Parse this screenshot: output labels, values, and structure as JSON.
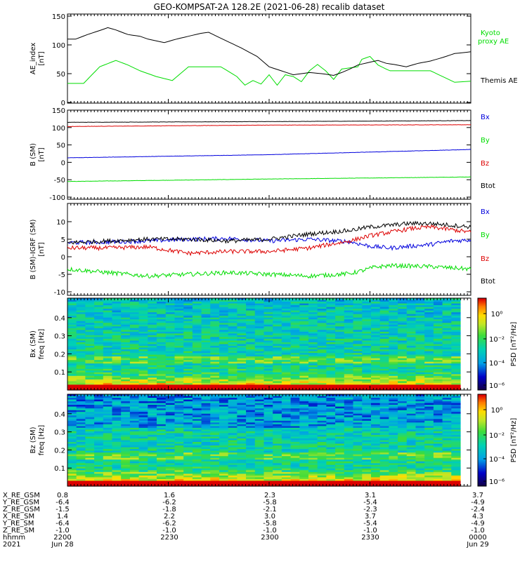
{
  "title": "GEO-KOMPSAT-2A 128.2E (2021-06-28) recalib dataset",
  "colors": {
    "black": "#000000",
    "red": "#dd0000",
    "green": "#00dd00",
    "blue": "#0000dd"
  },
  "chart_data": [
    {
      "type": "line",
      "ylabel": "AE_index\n[nT]",
      "ylim": [
        0,
        150
      ],
      "yticks": [
        "0",
        "50",
        "100",
        "150"
      ],
      "x": [
        2200,
        2305,
        2400
      ],
      "series": [
        {
          "name": "Kyoto proxy AE",
          "color": "#00dd00",
          "points": [
            [
              0,
              33
            ],
            [
              4,
              33
            ],
            [
              8,
              62
            ],
            [
              12,
              73
            ],
            [
              15,
              65
            ],
            [
              18,
              55
            ],
            [
              22,
              45
            ],
            [
              26,
              38
            ],
            [
              30,
              62
            ],
            [
              34,
              62
            ],
            [
              38,
              62
            ],
            [
              42,
              45
            ],
            [
              44,
              30
            ],
            [
              46,
              38
            ],
            [
              48,
              32
            ],
            [
              50,
              48
            ],
            [
              52,
              30
            ],
            [
              54,
              48
            ],
            [
              56,
              45
            ],
            [
              58,
              36
            ],
            [
              60,
              55
            ],
            [
              62,
              66
            ],
            [
              64,
              55
            ],
            [
              66,
              40
            ],
            [
              68,
              58
            ],
            [
              70,
              60
            ],
            [
              72,
              62
            ],
            [
              73,
              75
            ],
            [
              75,
              80
            ],
            [
              77,
              65
            ],
            [
              79,
              58
            ],
            [
              80,
              55
            ],
            [
              90,
              55
            ],
            [
              93,
              45
            ],
            [
              96,
              35
            ],
            [
              100,
              37
            ]
          ]
        },
        {
          "name": "Themis AE",
          "color": "#000000",
          "points": [
            [
              0,
              110
            ],
            [
              2,
              110
            ],
            [
              5,
              118
            ],
            [
              8,
              125
            ],
            [
              10,
              130
            ],
            [
              12,
              126
            ],
            [
              15,
              118
            ],
            [
              18,
              115
            ],
            [
              20,
              110
            ],
            [
              24,
              104
            ],
            [
              27,
              110
            ],
            [
              30,
              115
            ],
            [
              33,
              120
            ],
            [
              35,
              122
            ],
            [
              37,
              115
            ],
            [
              40,
              105
            ],
            [
              43,
              95
            ],
            [
              47,
              80
            ],
            [
              50,
              62
            ],
            [
              53,
              55
            ],
            [
              56,
              48
            ],
            [
              60,
              52
            ],
            [
              63,
              50
            ],
            [
              66,
              47
            ],
            [
              68,
              52
            ],
            [
              70,
              58
            ],
            [
              72,
              65
            ],
            [
              75,
              70
            ],
            [
              77,
              73
            ],
            [
              79,
              68
            ],
            [
              81,
              66
            ],
            [
              84,
              62
            ],
            [
              87,
              68
            ],
            [
              90,
              72
            ],
            [
              93,
              78
            ],
            [
              96,
              85
            ],
            [
              100,
              88
            ]
          ]
        }
      ]
    },
    {
      "type": "line",
      "ylabel": "B (SM)\n[nT]",
      "ylim": [
        -100,
        150
      ],
      "yticks": [
        "-100",
        "-50",
        "0",
        "50",
        "100",
        "150"
      ],
      "x": [
        2200,
        2305,
        2400
      ],
      "series": [
        {
          "name": "Bx",
          "color": "#0000dd",
          "points": [
            [
              0,
              13
            ],
            [
              50,
              22
            ],
            [
              100,
              37
            ]
          ]
        },
        {
          "name": "By",
          "color": "#00dd00",
          "points": [
            [
              0,
              -55
            ],
            [
              50,
              -48
            ],
            [
              100,
              -42
            ]
          ]
        },
        {
          "name": "Bz",
          "color": "#dd0000",
          "points": [
            [
              0,
              103
            ],
            [
              50,
              107
            ],
            [
              100,
              108
            ]
          ]
        },
        {
          "name": "Btot",
          "color": "#000000",
          "points": [
            [
              0,
              115
            ],
            [
              50,
              117
            ],
            [
              100,
              120
            ]
          ]
        }
      ]
    },
    {
      "type": "line",
      "ylabel": "B (SM)-IGRF (SM)\n[nT]",
      "ylim": [
        -10,
        10
      ],
      "yticks": [
        "-10",
        "-5",
        "0",
        "5",
        "10"
      ],
      "x": [
        2200,
        2305,
        2400
      ],
      "series": [
        {
          "name": "Bx",
          "color": "#0000dd",
          "points": [
            [
              0,
              4
            ],
            [
              10,
              4.2
            ],
            [
              20,
              4.5
            ],
            [
              30,
              5
            ],
            [
              40,
              5.2
            ],
            [
              50,
              4.5
            ],
            [
              60,
              5
            ],
            [
              70,
              4.3
            ],
            [
              75,
              3
            ],
            [
              80,
              2.5
            ],
            [
              85,
              3
            ],
            [
              90,
              3.5
            ],
            [
              95,
              4.5
            ],
            [
              100,
              4.8
            ]
          ]
        },
        {
          "name": "By",
          "color": "#00dd00",
          "points": [
            [
              0,
              -3.5
            ],
            [
              10,
              -4.5
            ],
            [
              20,
              -5.5
            ],
            [
              30,
              -5
            ],
            [
              40,
              -4.5
            ],
            [
              50,
              -5
            ],
            [
              60,
              -5.5
            ],
            [
              65,
              -5.2
            ],
            [
              70,
              -4.8
            ],
            [
              73,
              -4
            ],
            [
              76,
              -3
            ],
            [
              80,
              -2.5
            ],
            [
              90,
              -2.8
            ],
            [
              100,
              -3.5
            ]
          ]
        },
        {
          "name": "Bz",
          "color": "#dd0000",
          "points": [
            [
              0,
              2.5
            ],
            [
              10,
              2.5
            ],
            [
              20,
              2.8
            ],
            [
              30,
              1
            ],
            [
              40,
              1.5
            ],
            [
              50,
              1.5
            ],
            [
              60,
              2.5
            ],
            [
              65,
              3.5
            ],
            [
              70,
              4.5
            ],
            [
              75,
              6
            ],
            [
              80,
              7
            ],
            [
              85,
              8
            ],
            [
              90,
              8.5
            ],
            [
              100,
              7
            ]
          ]
        },
        {
          "name": "Btot",
          "color": "#000000",
          "points": [
            [
              0,
              4
            ],
            [
              10,
              4.5
            ],
            [
              20,
              5
            ],
            [
              30,
              5
            ],
            [
              40,
              4.5
            ],
            [
              50,
              5
            ],
            [
              60,
              6.5
            ],
            [
              65,
              7
            ],
            [
              70,
              7.5
            ],
            [
              75,
              8.5
            ],
            [
              80,
              9
            ],
            [
              85,
              9.5
            ],
            [
              90,
              9.5
            ],
            [
              100,
              8.5
            ]
          ]
        }
      ]
    },
    {
      "type": "heatmap",
      "ylabel": "Bx (SM)\nfreq [Hz]",
      "ylim": [
        0,
        0.5
      ],
      "yticks": [
        "0.1",
        "0.2",
        "0.3",
        "0.4"
      ],
      "colorbar_label": "PSD [nT²/Hz]",
      "colorbar_ticks": [
        "10⁰",
        "10⁻²",
        "10⁻⁴",
        "10⁻⁶"
      ]
    },
    {
      "type": "heatmap",
      "ylabel": "Bz (SM)\nfreq [Hz]",
      "ylim": [
        0,
        0.5
      ],
      "yticks": [
        "0.1",
        "0.2",
        "0.3",
        "0.4"
      ],
      "colorbar_label": "PSD [nT²/Hz]",
      "colorbar_ticks": [
        "10⁰",
        "10⁻²",
        "10⁻⁴",
        "10⁻⁶"
      ]
    }
  ],
  "legends": [
    [
      "Kyoto",
      "proxy AE",
      "Themis AE"
    ],
    [
      "Bx",
      "By",
      "Bz",
      "Btot"
    ],
    [
      "Bx",
      "By",
      "Bz",
      "Btot"
    ]
  ],
  "ephemeris": {
    "row_labels": [
      "X_RE_GSM",
      "Y_RE_GSM",
      "Z_RE_GSM",
      "X_RE_SM",
      "Y_RE_SM",
      "Z_RE_SM",
      "hhmm",
      "2021"
    ],
    "columns": [
      [
        "0.8",
        "-6.4",
        "-1.5",
        "1.4",
        "-6.4",
        "-1.0",
        "2200",
        "Jun 28"
      ],
      [
        "1.6",
        "-6.2",
        "-1.8",
        "2.2",
        "-6.2",
        "-1.0",
        "2230",
        ""
      ],
      [
        "2.3",
        "-5.8",
        "-2.1",
        "3.0",
        "-5.8",
        "-1.0",
        "2300",
        ""
      ],
      [
        "3.1",
        "-5.4",
        "-2.3",
        "3.7",
        "-5.4",
        "-1.0",
        "2330",
        ""
      ],
      [
        "3.7",
        "-4.9",
        "-2.4",
        "4.3",
        "-4.9",
        "-1.0",
        "0000",
        "Jun 29"
      ]
    ]
  }
}
